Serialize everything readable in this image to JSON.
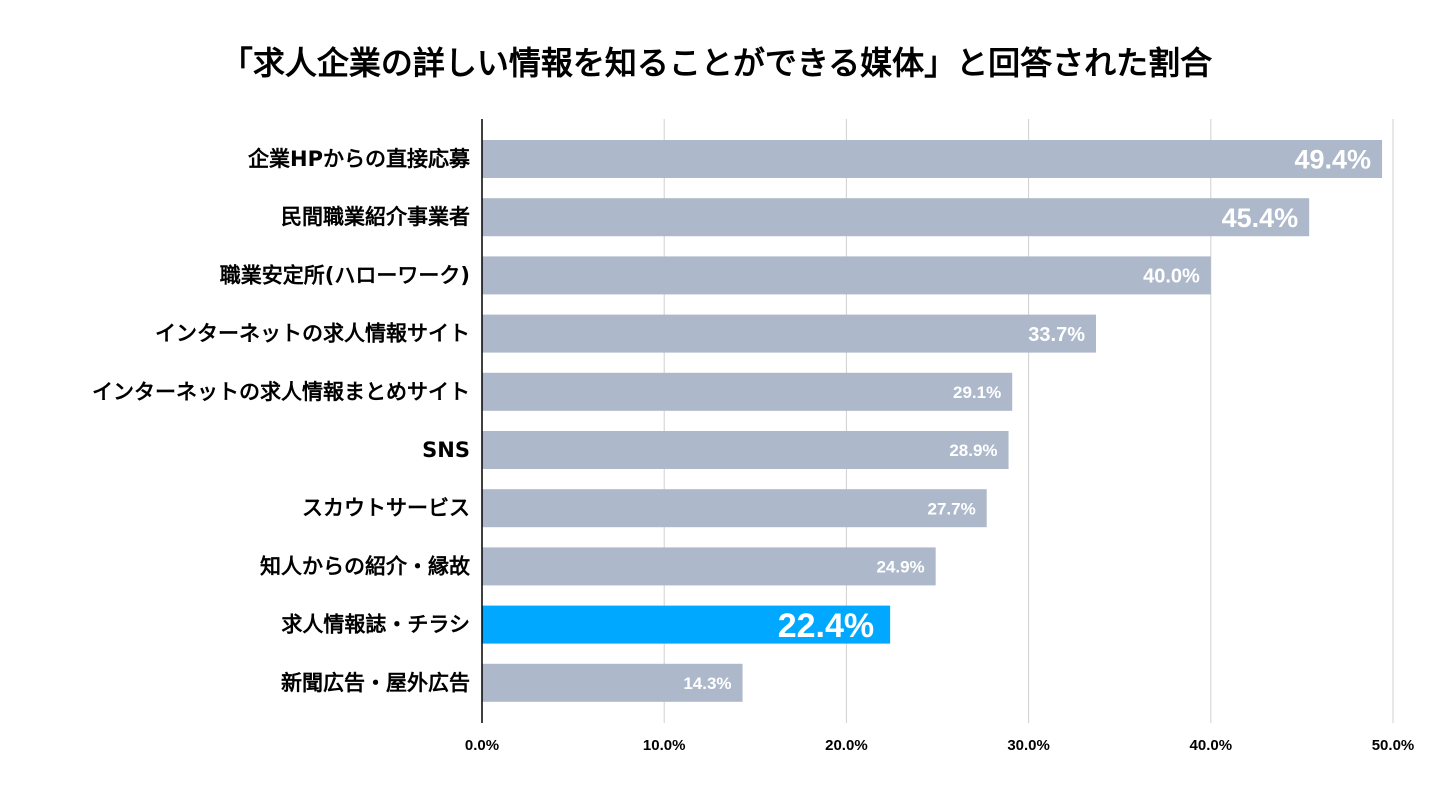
{
  "chart_data": {
    "type": "bar",
    "orientation": "horizontal",
    "title": "「求人企業の詳しい情報を知ることができる媒体」と回答された割合",
    "xlabel": "",
    "ylabel": "",
    "xlim": [
      0,
      50
    ],
    "grid": true,
    "categories": [
      "企業HPからの直接応募",
      "民間職業紹介事業者",
      "職業安定所(ハローワーク)",
      "インターネットの求人情報サイト",
      "インターネットの求人情報まとめサイト",
      "SNS",
      "スカウトサービス",
      "知人からの紹介・縁故",
      "求人情報誌・チラシ",
      "新聞広告・屋外広告"
    ],
    "values": [
      49.4,
      45.4,
      40.0,
      33.7,
      29.1,
      28.9,
      27.7,
      24.9,
      22.4,
      14.3
    ],
    "data_labels": [
      "49.4%",
      "45.4%",
      "40.0%",
      "33.7%",
      "29.1%",
      "28.9%",
      "27.7%",
      "24.9%",
      "22.4%",
      "14.3%"
    ],
    "ticks": [
      0,
      10,
      20,
      30,
      40,
      50
    ],
    "tick_labels": [
      "0.0%",
      "10.0%",
      "20.0%",
      "30.0%",
      "40.0%",
      "50.0%"
    ],
    "highlight_index": 8,
    "colors": {
      "bar": "#adb9ca",
      "highlight": "#00a8ff",
      "grid": "#d0d0d0",
      "axis": "#000000",
      "data_label": "#ffffff"
    }
  }
}
